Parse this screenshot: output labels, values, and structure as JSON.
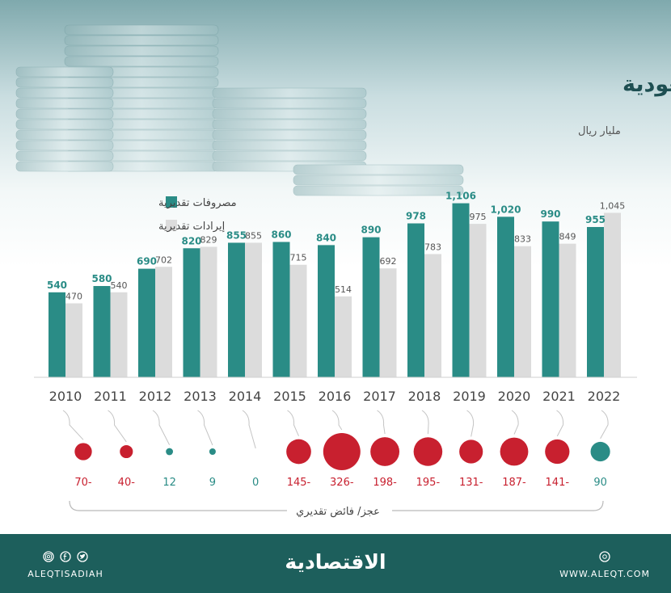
{
  "header": {
    "title": "تطور ميزانية السعودية",
    "unit": "مليار ريال"
  },
  "legend": {
    "spending": "مصروفات تقديرية",
    "revenue": "إيرادات تقديرية"
  },
  "colors": {
    "spending": "#2a8c86",
    "revenue": "#dcdcdc",
    "deficit": "#c8202f",
    "surplus": "#2a8c86",
    "footer": "#1d5f5c"
  },
  "chart_data": {
    "type": "bar",
    "categories": [
      "2010",
      "2011",
      "2012",
      "2013",
      "2014",
      "2015",
      "2016",
      "2017",
      "2018",
      "2019",
      "2020",
      "2021",
      "2022"
    ],
    "series": [
      {
        "name": "مصروفات تقديرية",
        "values": [
          540,
          580,
          690,
          820,
          855,
          860,
          840,
          890,
          978,
          1106,
          1020,
          990,
          955
        ],
        "labels": [
          "540",
          "580",
          "690",
          "820",
          "855",
          "860",
          "840",
          "890",
          "978",
          "1,106",
          "1,020",
          "990",
          "955"
        ]
      },
      {
        "name": "إيرادات تقديرية",
        "values": [
          470,
          540,
          702,
          829,
          855,
          715,
          514,
          692,
          783,
          975,
          833,
          849,
          1045
        ],
        "labels": [
          "470",
          "540",
          "702",
          "829",
          "855",
          "715",
          "514",
          "692",
          "783",
          "975",
          "833",
          "849",
          "1,045"
        ]
      }
    ],
    "balance": {
      "label": "عجز/ فائض تقديري",
      "values": [
        -70,
        -40,
        12,
        9,
        0,
        -145,
        -326,
        -198,
        -195,
        -131,
        -187,
        -141,
        90
      ],
      "labels": [
        "70-",
        "40-",
        "12",
        "9",
        "0",
        "145-",
        "326-",
        "198-",
        "195-",
        "131-",
        "187-",
        "141-",
        "90"
      ]
    },
    "ylim": [
      0,
      1150
    ],
    "legend_position": "top-left"
  },
  "footer": {
    "brand": "الاقتصادية",
    "handle": "ALEQTISADIAH",
    "website": "WWW.ALEQT.COM",
    "icons": [
      "instagram-icon",
      "facebook-icon",
      "twitter-icon",
      "website-icon"
    ]
  }
}
